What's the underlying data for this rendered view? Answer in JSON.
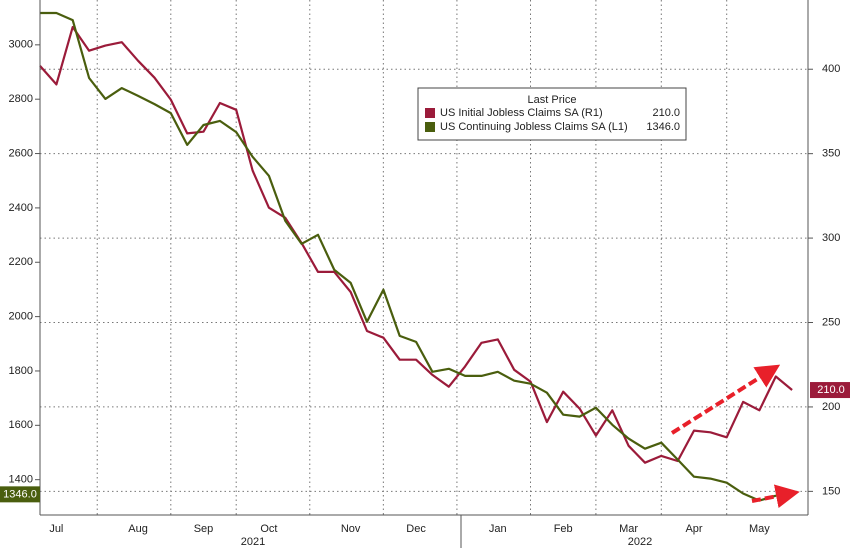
{
  "chart_data": {
    "type": "line",
    "legend_title": "Last Price",
    "categories": [
      null,
      "Jul",
      null,
      null,
      null,
      null,
      "Aug",
      null,
      null,
      null,
      "Sep",
      null,
      null,
      null,
      "Oct",
      null,
      null,
      null,
      null,
      "Nov",
      null,
      null,
      null,
      "Dec",
      null,
      null,
      null,
      null,
      "Jan",
      null,
      null,
      null,
      "Feb",
      null,
      null,
      null,
      "Mar",
      null,
      null,
      null,
      "Apr",
      null,
      null,
      null,
      "May",
      null,
      null
    ],
    "year_labels": [
      "2021",
      "2022"
    ],
    "series": [
      {
        "name": "US Initial Jobless Claims SA  (R1)",
        "color": "#9b1b3a",
        "axis": "y2",
        "last_label": "210.0",
        "values": [
          402,
          391,
          425,
          411,
          414,
          416,
          405,
          395,
          382,
          362,
          363,
          380,
          376,
          340,
          318,
          312,
          297,
          280,
          280,
          268,
          245,
          241,
          228,
          228,
          219,
          212,
          224,
          238,
          240,
          222,
          215,
          191,
          209,
          199,
          183,
          198,
          177,
          167,
          171,
          168,
          186,
          185,
          182,
          203,
          198,
          218,
          210
        ]
      },
      {
        "name": "US Continuing Jobless Claims SA  (L1)",
        "color": "#4a5e0e",
        "last_label": "1346.0",
        "values": [
          3117,
          3117,
          3091,
          2878,
          2801,
          2841,
          2812,
          2782,
          2749,
          2632,
          2705,
          2720,
          2679,
          2588,
          2518,
          2352,
          2268,
          2301,
          2172,
          2124,
          1981,
          2099,
          1929,
          1907,
          1797,
          1808,
          1782,
          1782,
          1797,
          1764,
          1753,
          1720,
          1639,
          1632,
          1665,
          1602,
          1551,
          1514,
          1536,
          1474,
          1411,
          1404,
          1389,
          1349,
          1323,
          1341,
          1346
        ]
      }
    ],
    "ylim": [
      1270,
      3165
    ],
    "yticks": [
      1400,
      1600,
      1800,
      2000,
      2200,
      2400,
      2600,
      2800,
      3000
    ],
    "y2lim": [
      136,
      441
    ],
    "y2ticks": [
      150,
      200,
      250,
      300,
      350,
      400
    ],
    "grid": true
  }
}
